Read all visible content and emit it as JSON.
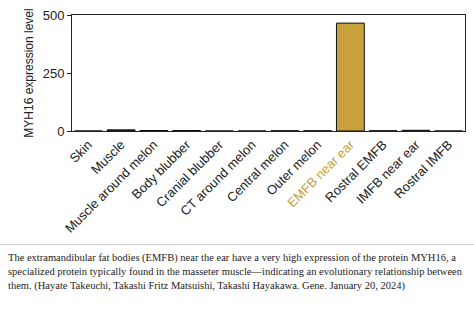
{
  "chart_data": {
    "type": "bar",
    "y_label": "MYH16 expression level",
    "categories": [
      "Skin",
      "Muscle",
      "Muscle around melon",
      "Body blubber",
      "Cranial blubber",
      "CT around melon",
      "Central melon",
      "Outer melon",
      "EMFB near ear",
      "Rostral EMFB",
      "IMFB near ear",
      "Rostral IMFB"
    ],
    "values": [
      0,
      5,
      2,
      2,
      0,
      0,
      1,
      1,
      465,
      1,
      3,
      0
    ],
    "colors": [
      "#222222",
      "#222222",
      "#222222",
      "#222222",
      "#222222",
      "#222222",
      "#222222",
      "#222222",
      "#c8a03c",
      "#222222",
      "#222222",
      "#222222"
    ],
    "ylim": [
      0,
      500
    ],
    "yticks": [
      0,
      250,
      500
    ],
    "grid": false,
    "caption": "The extramandibular fat bodies (EMFB) near the ear have a very high expression of the protein MYH16, a specialized protein typically found in the masseter muscle—indicating an evolutionary relationship between them. (Hayate Takeuchi, Takashi Fritz Matsuishi, Takashi Hayakawa. Gene. January 20, 2024)"
  }
}
